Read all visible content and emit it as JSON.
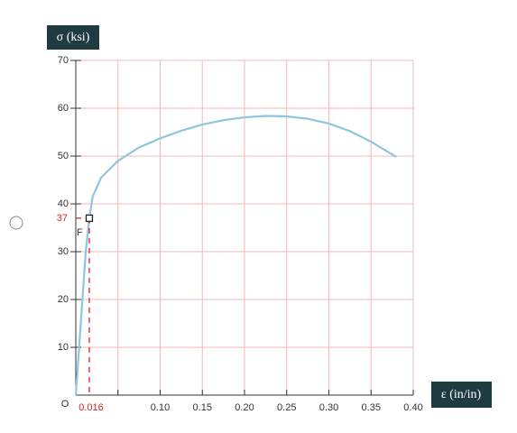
{
  "chart_data": {
    "type": "line",
    "y_label": "σ (ksi)",
    "x_label": "ε (in/in)",
    "x": [
      0,
      0.0118,
      0.016,
      0.02,
      0.03,
      0.05,
      0.075,
      0.1,
      0.125,
      0.15,
      0.175,
      0.2,
      0.225,
      0.25,
      0.275,
      0.3,
      0.325,
      0.35,
      0.38
    ],
    "series": [
      {
        "name": "σ",
        "color": "#8ec6e0",
        "values": [
          0,
          30,
          37,
          41.5,
          45.5,
          49,
          51.8,
          53.7,
          55.3,
          56.6,
          57.5,
          58.1,
          58.4,
          58.3,
          57.8,
          56.8,
          55.2,
          53,
          49.8
        ]
      }
    ],
    "xlim": [
      0,
      0.4
    ],
    "ylim": [
      0,
      70
    ],
    "xticks": [
      {
        "value": 0.05,
        "label": null
      },
      {
        "value": 0.1,
        "label": "0.10"
      },
      {
        "value": 0.15,
        "label": "0.15"
      },
      {
        "value": 0.2,
        "label": "0.20"
      },
      {
        "value": 0.25,
        "label": "0.25"
      },
      {
        "value": 0.3,
        "label": "0.30"
      },
      {
        "value": 0.35,
        "label": "0.35"
      },
      {
        "value": 0.4,
        "label": "0.40"
      }
    ],
    "yticks": [
      10,
      20,
      30,
      40,
      50,
      60,
      70
    ],
    "grid": true,
    "grid_color": "#f5b8b8",
    "marker": {
      "x": 0.016,
      "y": 37,
      "label": "F",
      "color": "#e02020"
    },
    "origin_label": "O"
  }
}
